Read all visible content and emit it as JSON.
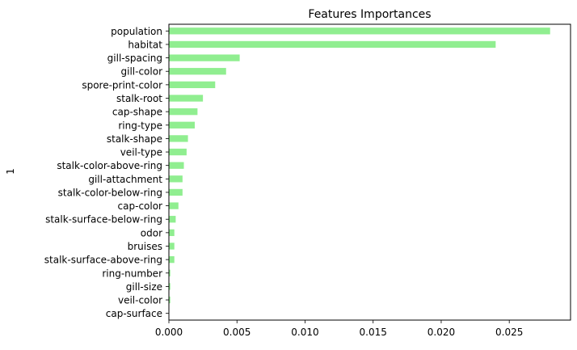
{
  "chart_data": {
    "type": "bar",
    "orientation": "horizontal",
    "title": "Features Importances",
    "xlabel": "",
    "ylabel": "1",
    "xlim": [
      0,
      0.0295
    ],
    "xticks": [
      0.0,
      0.005,
      0.01,
      0.015,
      0.02,
      0.025
    ],
    "xtick_labels": [
      "0.000",
      "0.005",
      "0.010",
      "0.015",
      "0.020",
      "0.025"
    ],
    "bar_color": "#90EE90",
    "grid": false,
    "categories": [
      "population",
      "habitat",
      "gill-spacing",
      "gill-color",
      "spore-print-color",
      "stalk-root",
      "cap-shape",
      "ring-type",
      "stalk-shape",
      "veil-type",
      "stalk-color-above-ring",
      "gill-attachment",
      "stalk-color-below-ring",
      "cap-color",
      "stalk-surface-below-ring",
      "odor",
      "bruises",
      "stalk-surface-above-ring",
      "ring-number",
      "gill-size",
      "veil-color",
      "cap-surface"
    ],
    "values": [
      0.028,
      0.024,
      0.0052,
      0.0042,
      0.0034,
      0.0025,
      0.0021,
      0.0019,
      0.0014,
      0.0013,
      0.0011,
      0.001,
      0.001,
      0.0007,
      0.0005,
      0.0004,
      0.0004,
      0.0004,
      0.0001,
      0.0001,
      0.0001,
      0.0
    ]
  }
}
